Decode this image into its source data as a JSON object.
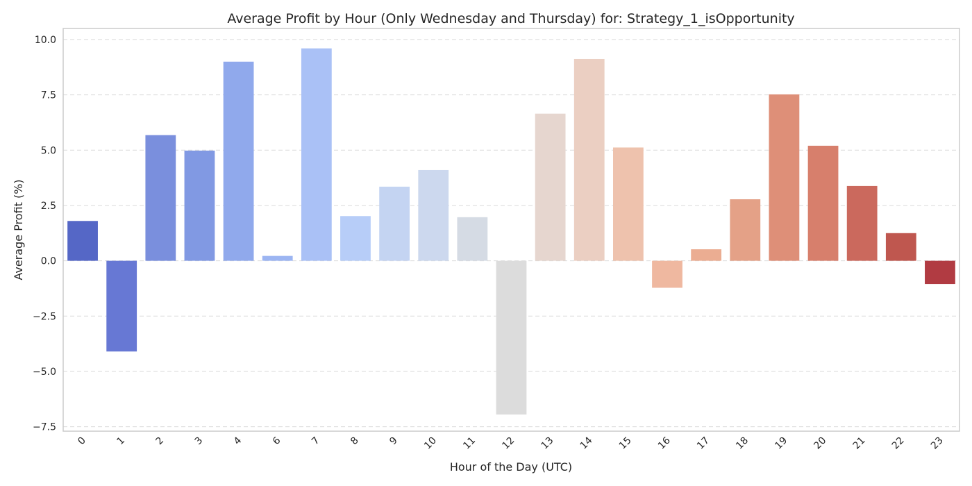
{
  "chart_data": {
    "type": "bar",
    "title": "Average Profit by Hour (Only Wednesday and Thursday) for: Strategy_1_isOpportunity",
    "xlabel": "Hour of the Day (UTC)",
    "ylabel": "Average Profit (%)",
    "categories": [
      "0",
      "1",
      "2",
      "3",
      "4",
      "6",
      "7",
      "8",
      "9",
      "10",
      "11",
      "12",
      "13",
      "14",
      "15",
      "16",
      "17",
      "18",
      "19",
      "20",
      "21",
      "22",
      "23"
    ],
    "values": [
      1.8,
      -4.1,
      5.68,
      4.98,
      9.0,
      0.22,
      9.6,
      2.02,
      3.35,
      4.1,
      1.97,
      -6.95,
      6.65,
      9.12,
      5.12,
      -1.22,
      0.52,
      2.78,
      7.52,
      5.2,
      3.38,
      1.25,
      -1.05
    ],
    "colors": [
      "#5567c6",
      "#6778d4",
      "#7a8fdd",
      "#8199e3",
      "#90a9ec",
      "#9cb5f2",
      "#aac1f6",
      "#b7cdf8",
      "#c4d4f2",
      "#ccd8ee",
      "#d5dbe4",
      "#dcdcdc",
      "#e6d6cf",
      "#ebcfc2",
      "#eec2ad",
      "#efb8a0",
      "#ebad92",
      "#e4a187",
      "#de8f78",
      "#d77f6c",
      "#cb695d",
      "#bf574f",
      "#b13b42"
    ],
    "yticks": [
      -7.5,
      -5.0,
      -2.5,
      0.0,
      2.5,
      5.0,
      7.5,
      10.0
    ],
    "ytick_labels": [
      "−7.5",
      "−5.0",
      "−2.5",
      "0.0",
      "2.5",
      "5.0",
      "7.5",
      "10.0"
    ],
    "ylim": [
      -7.7,
      10.5
    ],
    "grid": true,
    "grid_axis": "y"
  }
}
